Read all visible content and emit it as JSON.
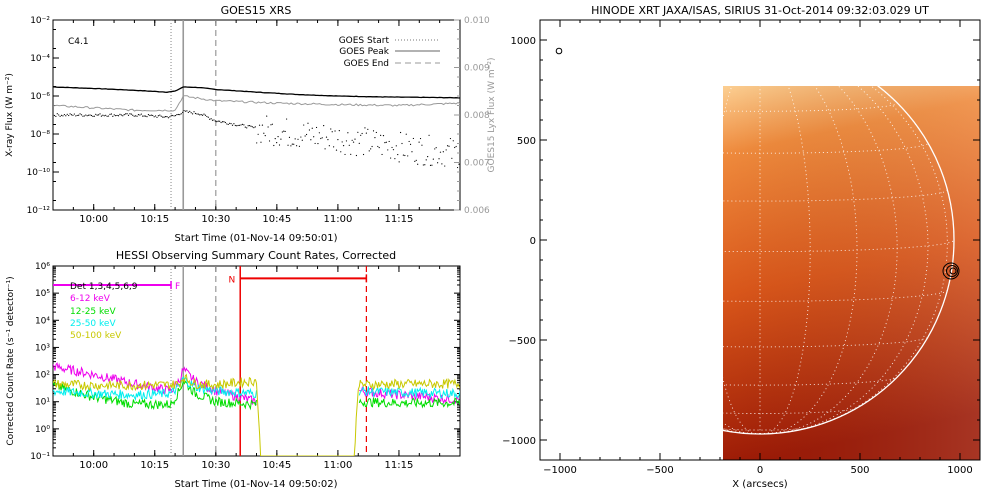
{
  "chart_data": [
    {
      "type": "line",
      "title": "GOES15 XRS",
      "xlabel": "Start Time (01-Nov-14 09:50:01)",
      "ylabel": "X-ray Flux (W m⁻²)",
      "ylabel_right": "GOES15 Lyx Flux (W m⁻²)",
      "yscale": "log",
      "ylim": [
        1e-12,
        0.01
      ],
      "ylim_right": [
        0.006,
        0.01
      ],
      "xlim": [
        "09:50",
        "11:30"
      ],
      "x_ticks": [
        "10:00",
        "10:15",
        "10:30",
        "10:45",
        "11:00",
        "11:15"
      ],
      "y_ticks": [
        "10⁻¹²",
        "10⁻¹⁰",
        "10⁻⁸",
        "10⁻⁶",
        "10⁻⁴",
        "10⁻²"
      ],
      "y_ticks_right": [
        "0.006",
        "0.007",
        "0.008",
        "0.009",
        "0.010"
      ],
      "annotation": "C4.1",
      "legend": [
        "GOES Start",
        "GOES Peak",
        "GOES End"
      ],
      "legend_position": "top-right",
      "markers": [
        {
          "name": "GOES Start",
          "x": "10:19",
          "style": "dotted"
        },
        {
          "name": "GOES Peak",
          "x": "10:22",
          "style": "solid"
        },
        {
          "name": "GOES End",
          "x": "10:30",
          "style": "dashed"
        }
      ],
      "series": [
        {
          "color": "#000000",
          "axis": "left",
          "style": "solid",
          "x": [
            "09:50",
            "10:00",
            "10:10",
            "10:18",
            "10:20",
            "10:22",
            "10:26",
            "10:30",
            "10:40",
            "10:50",
            "11:00",
            "11:10",
            "11:20",
            "11:30"
          ],
          "values": [
            3e-06,
            2.5e-06,
            2e-06,
            1.6e-06,
            1.8e-06,
            3e-06,
            2.8e-06,
            2.2e-06,
            1.6e-06,
            1.2e-06,
            1e-06,
            9e-07,
            8.5e-07,
            8e-07
          ]
        },
        {
          "color": "#000000",
          "axis": "left",
          "style": "dotted",
          "x": [
            "09:50",
            "10:00",
            "10:10",
            "10:18",
            "10:20",
            "10:22",
            "10:26",
            "10:30",
            "10:40",
            "10:50",
            "11:00",
            "11:10",
            "11:20",
            "11:30"
          ],
          "values": [
            1e-07,
            1e-07,
            1e-07,
            8e-08,
            9e-08,
            1.5e-07,
            1.2e-07,
            5e-08,
            2e-08,
            1e-08,
            6e-09,
            3e-09,
            1.5e-09,
            1e-09
          ]
        },
        {
          "color": "#999999",
          "axis": "right",
          "style": "solid",
          "x": [
            "09:50",
            "10:00",
            "10:10",
            "10:20",
            "10:22",
            "10:30",
            "10:45",
            "11:00",
            "11:15",
            "11:30"
          ],
          "values": [
            0.0082,
            0.00815,
            0.0081,
            0.0081,
            0.0084,
            0.0083,
            0.00825,
            0.00822,
            0.0082,
            0.00825
          ]
        }
      ]
    },
    {
      "type": "line",
      "title": "HESSI Observing Summary Count Rates, Corrected",
      "xlabel": "Start Time (01-Nov-14 09:50:02)",
      "ylabel": "Corrected Count Rate (s⁻¹ detector⁻¹)",
      "yscale": "log",
      "ylim": [
        0.1,
        1000000.0
      ],
      "xlim": [
        "09:50",
        "11:30"
      ],
      "x_ticks": [
        "10:00",
        "10:15",
        "10:30",
        "10:45",
        "11:00",
        "11:15"
      ],
      "y_ticks": [
        "10⁻¹",
        "10⁰",
        "10¹",
        "10²",
        "10³",
        "10⁴",
        "10⁵",
        "10⁶"
      ],
      "legend": [
        "Det 1,3,4,5,6,9",
        "6-12 keV",
        "12-25 keV",
        "25-50 keV",
        "50-100 keV"
      ],
      "legend_position": "top-left",
      "flags": [
        {
          "label": "F",
          "x_start": "09:50",
          "x_end": "10:19",
          "y": 200000.0,
          "color": "#ee00ee"
        },
        {
          "label": "N",
          "x_start": "10:36",
          "x_end": "11:07",
          "y": 350000.0,
          "color": "#ee0000"
        }
      ],
      "markers": [
        {
          "x": "10:19",
          "style": "dotted",
          "color": "#999999"
        },
        {
          "x": "10:22",
          "style": "solid",
          "color": "#999999"
        },
        {
          "x": "10:30",
          "style": "dashed",
          "color": "#999999"
        },
        {
          "x": "10:36",
          "style": "solid",
          "color": "#ee0000"
        },
        {
          "x": "11:07",
          "style": "dashed",
          "color": "#ee0000"
        }
      ],
      "series": [
        {
          "name": "6-12 keV",
          "color": "#ee00ee",
          "x": [
            "09:50",
            "10:00",
            "10:10",
            "10:19",
            "10:21",
            "10:22",
            "10:25",
            "10:30",
            "10:40",
            "10:42",
            "11:03",
            "11:05",
            "11:15",
            "11:30"
          ],
          "values": [
            200,
            100,
            45,
            25,
            60,
            150,
            55,
            25,
            10,
            null,
            null,
            25,
            18,
            12
          ]
        },
        {
          "name": "12-25 keV",
          "color": "#00dd00",
          "x": [
            "09:50",
            "10:00",
            "10:10",
            "10:19",
            "10:21",
            "10:22",
            "10:25",
            "10:30",
            "10:40",
            "10:42",
            "11:03",
            "11:05",
            "11:15",
            "11:30"
          ],
          "values": [
            40,
            15,
            8,
            8,
            25,
            60,
            20,
            10,
            8,
            null,
            null,
            10,
            9,
            9
          ]
        },
        {
          "name": "25-50 keV",
          "color": "#00eeee",
          "x": [
            "09:50",
            "10:00",
            "10:10",
            "10:19",
            "10:21",
            "10:22",
            "10:25",
            "10:30",
            "10:40",
            "10:42",
            "11:03",
            "11:05",
            "11:15",
            "11:30"
          ],
          "values": [
            25,
            20,
            18,
            20,
            35,
            70,
            35,
            25,
            20,
            null,
            null,
            25,
            22,
            20
          ]
        },
        {
          "name": "50-100 keV",
          "color": "#c8c800",
          "x": [
            "09:50",
            "10:00",
            "10:10",
            "10:19",
            "10:21",
            "10:22",
            "10:25",
            "10:30",
            "10:40",
            "10:41",
            "10:42",
            "11:03",
            "11:04",
            "11:05",
            "11:15",
            "11:30"
          ],
          "values": [
            45,
            40,
            40,
            42,
            45,
            80,
            45,
            42,
            60,
            0.1,
            0.1,
            0.1,
            0.1,
            42,
            45,
            45
          ]
        }
      ]
    },
    {
      "type": "heatmap",
      "title": "HINODE XRT JAXA/ISAS, SIRIUS 31-Oct-2014 09:32:03.029 UT",
      "xlabel": "X (arcsecs)",
      "ylabel": "",
      "xlim": [
        -1100,
        1100
      ],
      "ylim": [
        -1100,
        1100
      ],
      "x_ticks": [
        "−1000",
        "−500",
        "0",
        "500",
        "1000"
      ],
      "y_ticks": [
        "−1000",
        "−500",
        "0",
        "500",
        "1000"
      ],
      "image_extent_x": [
        -190,
        1100
      ],
      "image_extent_y": [
        -1100,
        770
      ],
      "limb_radius": 970,
      "grid": "heliographic dotted",
      "colormap": "orange-to-dark-red",
      "contour_center": [
        955,
        -155
      ]
    }
  ]
}
